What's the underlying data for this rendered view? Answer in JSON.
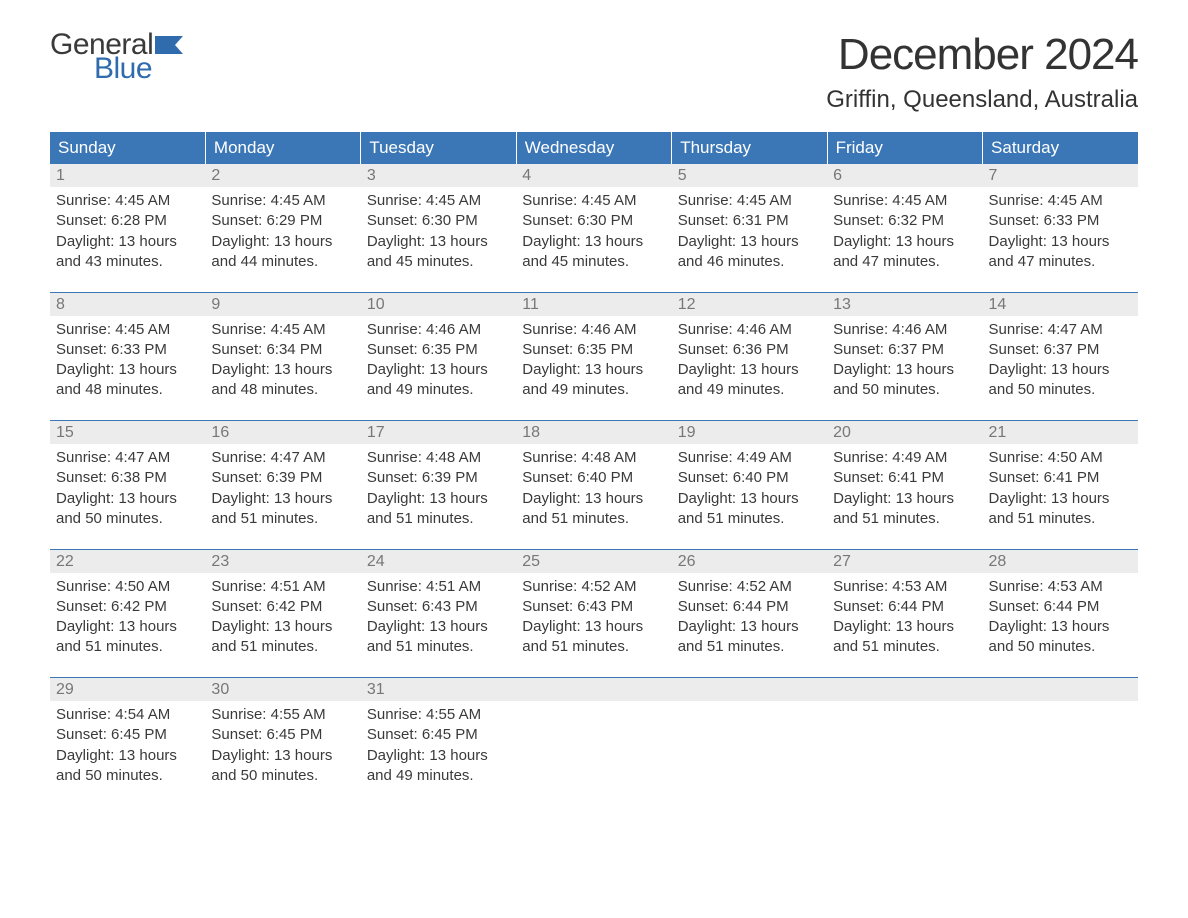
{
  "brand": {
    "word1": "General",
    "word2": "Blue",
    "flag_color": "#2f6bad",
    "text_color_dark": "#3a3a3a"
  },
  "title": "December 2024",
  "location": "Griffin, Queensland, Australia",
  "colors": {
    "header_bg": "#3b77b7",
    "header_text": "#ffffff",
    "daynum_bg": "#ececec",
    "daynum_text": "#777777",
    "body_text": "#3a3a3a",
    "week_divider": "#3b77b7",
    "background": "#ffffff"
  },
  "fonts": {
    "title_pt": 44,
    "location_pt": 24,
    "dayheader_pt": 17,
    "daynum_pt": 16,
    "body_pt": 15
  },
  "day_headers": [
    "Sunday",
    "Monday",
    "Tuesday",
    "Wednesday",
    "Thursday",
    "Friday",
    "Saturday"
  ],
  "labels": {
    "sunrise": "Sunrise:",
    "sunset": "Sunset:",
    "daylight": "Daylight:"
  },
  "weeks": [
    [
      {
        "n": "1",
        "sunrise": "4:45 AM",
        "sunset": "6:28 PM",
        "day1": "13 hours",
        "day2": "and 43 minutes."
      },
      {
        "n": "2",
        "sunrise": "4:45 AM",
        "sunset": "6:29 PM",
        "day1": "13 hours",
        "day2": "and 44 minutes."
      },
      {
        "n": "3",
        "sunrise": "4:45 AM",
        "sunset": "6:30 PM",
        "day1": "13 hours",
        "day2": "and 45 minutes."
      },
      {
        "n": "4",
        "sunrise": "4:45 AM",
        "sunset": "6:30 PM",
        "day1": "13 hours",
        "day2": "and 45 minutes."
      },
      {
        "n": "5",
        "sunrise": "4:45 AM",
        "sunset": "6:31 PM",
        "day1": "13 hours",
        "day2": "and 46 minutes."
      },
      {
        "n": "6",
        "sunrise": "4:45 AM",
        "sunset": "6:32 PM",
        "day1": "13 hours",
        "day2": "and 47 minutes."
      },
      {
        "n": "7",
        "sunrise": "4:45 AM",
        "sunset": "6:33 PM",
        "day1": "13 hours",
        "day2": "and 47 minutes."
      }
    ],
    [
      {
        "n": "8",
        "sunrise": "4:45 AM",
        "sunset": "6:33 PM",
        "day1": "13 hours",
        "day2": "and 48 minutes."
      },
      {
        "n": "9",
        "sunrise": "4:45 AM",
        "sunset": "6:34 PM",
        "day1": "13 hours",
        "day2": "and 48 minutes."
      },
      {
        "n": "10",
        "sunrise": "4:46 AM",
        "sunset": "6:35 PM",
        "day1": "13 hours",
        "day2": "and 49 minutes."
      },
      {
        "n": "11",
        "sunrise": "4:46 AM",
        "sunset": "6:35 PM",
        "day1": "13 hours",
        "day2": "and 49 minutes."
      },
      {
        "n": "12",
        "sunrise": "4:46 AM",
        "sunset": "6:36 PM",
        "day1": "13 hours",
        "day2": "and 49 minutes."
      },
      {
        "n": "13",
        "sunrise": "4:46 AM",
        "sunset": "6:37 PM",
        "day1": "13 hours",
        "day2": "and 50 minutes."
      },
      {
        "n": "14",
        "sunrise": "4:47 AM",
        "sunset": "6:37 PM",
        "day1": "13 hours",
        "day2": "and 50 minutes."
      }
    ],
    [
      {
        "n": "15",
        "sunrise": "4:47 AM",
        "sunset": "6:38 PM",
        "day1": "13 hours",
        "day2": "and 50 minutes."
      },
      {
        "n": "16",
        "sunrise": "4:47 AM",
        "sunset": "6:39 PM",
        "day1": "13 hours",
        "day2": "and 51 minutes."
      },
      {
        "n": "17",
        "sunrise": "4:48 AM",
        "sunset": "6:39 PM",
        "day1": "13 hours",
        "day2": "and 51 minutes."
      },
      {
        "n": "18",
        "sunrise": "4:48 AM",
        "sunset": "6:40 PM",
        "day1": "13 hours",
        "day2": "and 51 minutes."
      },
      {
        "n": "19",
        "sunrise": "4:49 AM",
        "sunset": "6:40 PM",
        "day1": "13 hours",
        "day2": "and 51 minutes."
      },
      {
        "n": "20",
        "sunrise": "4:49 AM",
        "sunset": "6:41 PM",
        "day1": "13 hours",
        "day2": "and 51 minutes."
      },
      {
        "n": "21",
        "sunrise": "4:50 AM",
        "sunset": "6:41 PM",
        "day1": "13 hours",
        "day2": "and 51 minutes."
      }
    ],
    [
      {
        "n": "22",
        "sunrise": "4:50 AM",
        "sunset": "6:42 PM",
        "day1": "13 hours",
        "day2": "and 51 minutes."
      },
      {
        "n": "23",
        "sunrise": "4:51 AM",
        "sunset": "6:42 PM",
        "day1": "13 hours",
        "day2": "and 51 minutes."
      },
      {
        "n": "24",
        "sunrise": "4:51 AM",
        "sunset": "6:43 PM",
        "day1": "13 hours",
        "day2": "and 51 minutes."
      },
      {
        "n": "25",
        "sunrise": "4:52 AM",
        "sunset": "6:43 PM",
        "day1": "13 hours",
        "day2": "and 51 minutes."
      },
      {
        "n": "26",
        "sunrise": "4:52 AM",
        "sunset": "6:44 PM",
        "day1": "13 hours",
        "day2": "and 51 minutes."
      },
      {
        "n": "27",
        "sunrise": "4:53 AM",
        "sunset": "6:44 PM",
        "day1": "13 hours",
        "day2": "and 51 minutes."
      },
      {
        "n": "28",
        "sunrise": "4:53 AM",
        "sunset": "6:44 PM",
        "day1": "13 hours",
        "day2": "and 50 minutes."
      }
    ],
    [
      {
        "n": "29",
        "sunrise": "4:54 AM",
        "sunset": "6:45 PM",
        "day1": "13 hours",
        "day2": "and 50 minutes."
      },
      {
        "n": "30",
        "sunrise": "4:55 AM",
        "sunset": "6:45 PM",
        "day1": "13 hours",
        "day2": "and 50 minutes."
      },
      {
        "n": "31",
        "sunrise": "4:55 AM",
        "sunset": "6:45 PM",
        "day1": "13 hours",
        "day2": "and 49 minutes."
      },
      null,
      null,
      null,
      null
    ]
  ]
}
